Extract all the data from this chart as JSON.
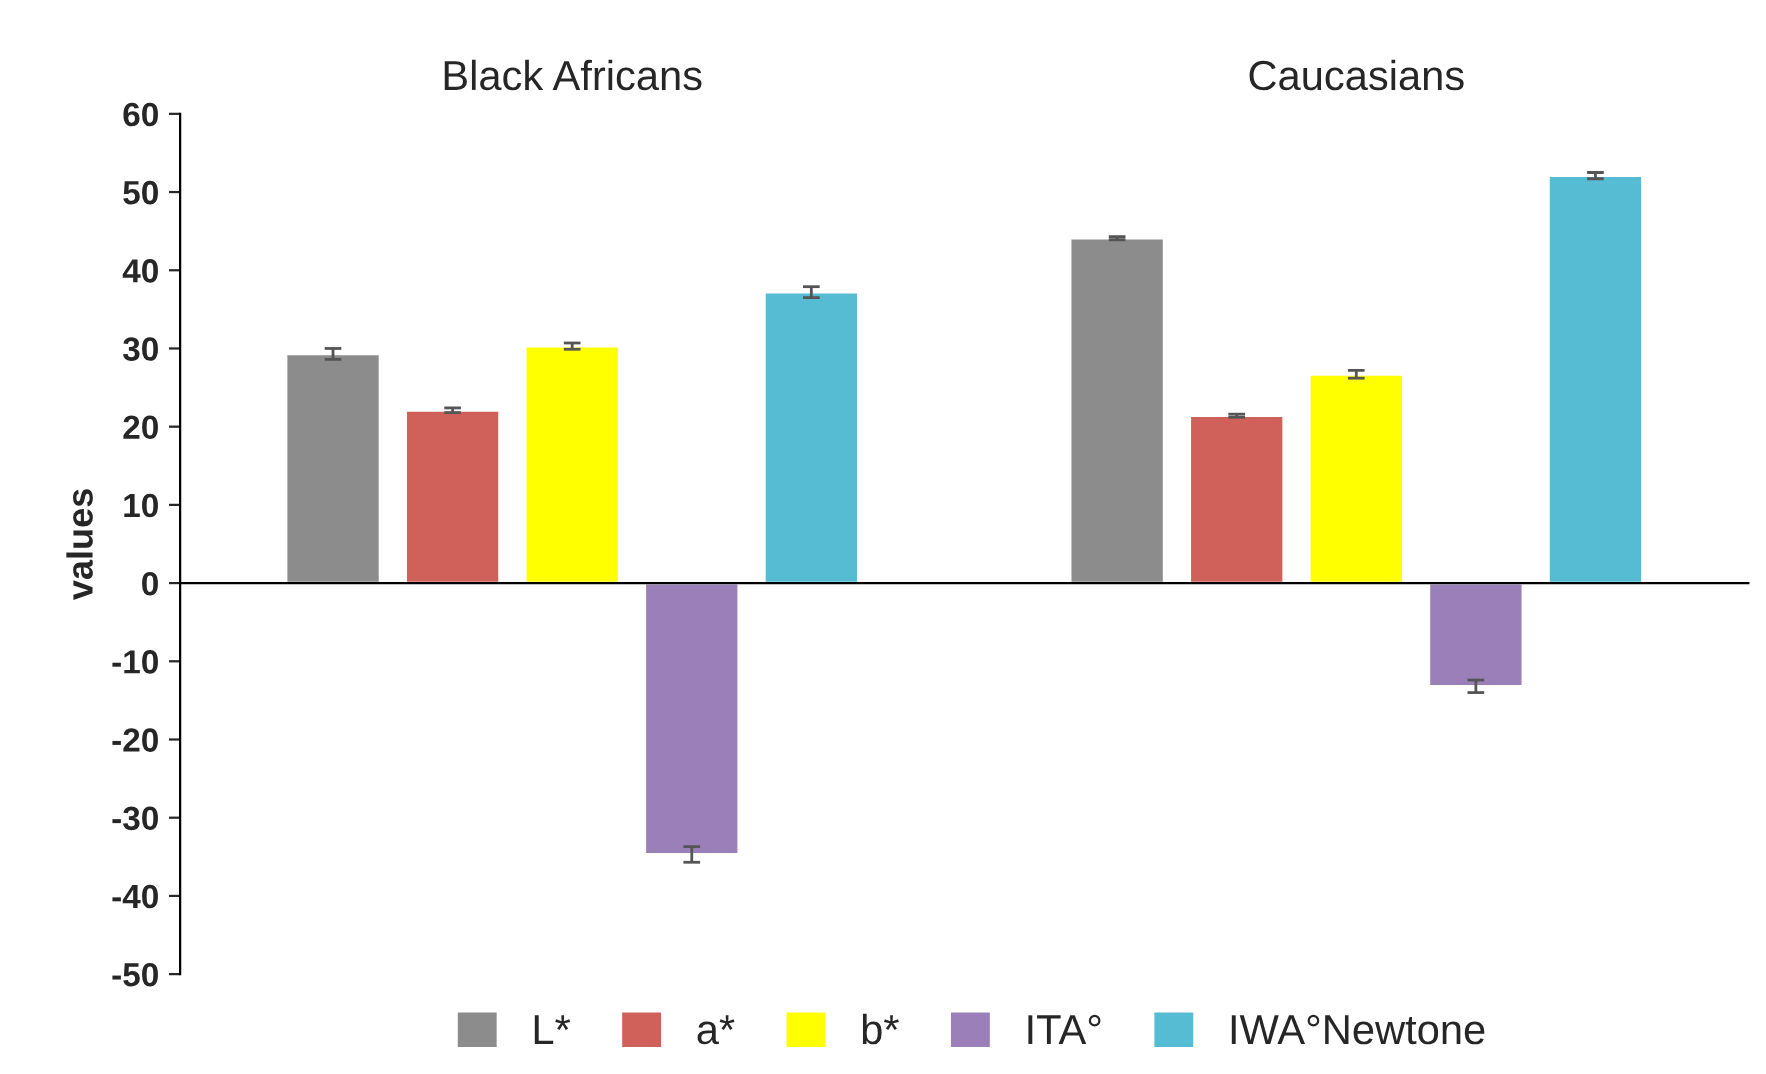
{
  "chart_data": {
    "type": "bar",
    "categories": [
      "Black Africans",
      "Caucasians"
    ],
    "ylabel": "values",
    "series": [
      {
        "name": "L*",
        "color": "#8c8c8c",
        "values": [
          29.3,
          44.1
        ],
        "errors": [
          0.7,
          0.2
        ]
      },
      {
        "name": "a*",
        "color": "#d0605a",
        "values": [
          22.1,
          21.4
        ],
        "errors": [
          0.3,
          0.2
        ]
      },
      {
        "name": "b*",
        "color": "#ffff00",
        "values": [
          30.3,
          26.7
        ],
        "errors": [
          0.4,
          0.5
        ]
      },
      {
        "name": "ITA°",
        "color": "#9b7fb8",
        "values": [
          -34.7,
          -13.2
        ],
        "errors": [
          1.0,
          0.8
        ]
      },
      {
        "name": "IWA°Newtone",
        "color": "#56bcd4",
        "values": [
          37.2,
          52.1
        ],
        "errors": [
          0.7,
          0.4
        ]
      }
    ],
    "ylim": [
      -50,
      60
    ],
    "yticks": [
      -50,
      -40,
      -30,
      -20,
      -10,
      0,
      10,
      20,
      30,
      40,
      50,
      60
    ],
    "legend": "bottom"
  }
}
